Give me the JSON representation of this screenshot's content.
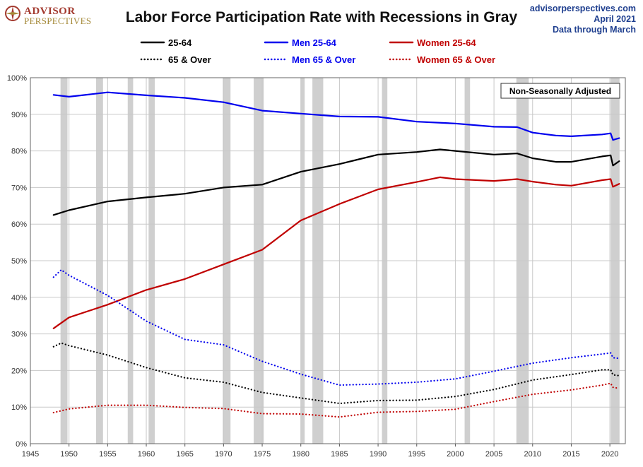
{
  "header": {
    "logo_line1": "ADVISOR",
    "logo_line2": "PERSPECTIVES",
    "title": "Labor Force Participation Rate with Recessions in Gray",
    "source_line1": "advisorperspectives.com",
    "source_line2": "April 2021",
    "source_line3": "Data through March"
  },
  "annotation": "Non-Seasonally Adjusted",
  "chart_data": {
    "type": "line",
    "title": "Labor Force Participation Rate with Recessions in Gray",
    "xlabel": "",
    "ylabel": "",
    "xlim": [
      1945,
      2022
    ],
    "ylim": [
      0,
      100
    ],
    "x_ticks": [
      1945,
      1950,
      1955,
      1960,
      1965,
      1970,
      1975,
      1980,
      1985,
      1990,
      1995,
      2000,
      2005,
      2010,
      2015,
      2020
    ],
    "y_ticks": [
      0,
      10,
      20,
      30,
      40,
      50,
      60,
      70,
      80,
      90,
      100
    ],
    "y_tick_labels": [
      "0%",
      "10%",
      "20%",
      "30%",
      "40%",
      "50%",
      "60%",
      "70%",
      "80%",
      "90%",
      "100%"
    ],
    "grid": true,
    "legend_position": "top",
    "recessions": [
      [
        1948.9,
        1949.8
      ],
      [
        1953.5,
        1954.4
      ],
      [
        1957.6,
        1958.3
      ],
      [
        1960.3,
        1961.1
      ],
      [
        1969.9,
        1970.9
      ],
      [
        1973.9,
        1975.2
      ],
      [
        1980.0,
        1980.5
      ],
      [
        1981.5,
        1982.9
      ],
      [
        1990.5,
        1991.2
      ],
      [
        2001.2,
        2001.9
      ],
      [
        2007.9,
        2009.5
      ],
      [
        2020.1,
        2021.25
      ]
    ],
    "series": [
      {
        "name": "25-64",
        "color": "#000000",
        "style": "solid",
        "x": [
          1948,
          1950,
          1955,
          1960,
          1965,
          1970,
          1975,
          1980,
          1985,
          1990,
          1995,
          1998,
          2000,
          2005,
          2008,
          2010,
          2013,
          2015,
          2019,
          2020.1,
          2020.4,
          2021.2
        ],
        "y": [
          62.5,
          63.8,
          66.2,
          67.3,
          68.3,
          70.0,
          70.8,
          74.3,
          76.4,
          79.0,
          79.7,
          80.4,
          80.0,
          79.0,
          79.3,
          78.0,
          77.0,
          77.0,
          78.5,
          78.8,
          76.0,
          77.2
        ]
      },
      {
        "name": "Men 25-64",
        "color": "#0000ee",
        "style": "solid",
        "x": [
          1948,
          1950,
          1955,
          1960,
          1965,
          1970,
          1975,
          1980,
          1985,
          1990,
          1995,
          2000,
          2005,
          2008,
          2010,
          2013,
          2015,
          2019,
          2020.1,
          2020.4,
          2021.2
        ],
        "y": [
          95.3,
          94.8,
          96.0,
          95.2,
          94.5,
          93.3,
          91.0,
          90.2,
          89.4,
          89.3,
          88.0,
          87.5,
          86.6,
          86.5,
          85.0,
          84.2,
          84.0,
          84.5,
          84.8,
          83.0,
          83.5
        ]
      },
      {
        "name": "Women 25-64",
        "color": "#c00000",
        "style": "solid",
        "x": [
          1948,
          1950,
          1955,
          1960,
          1965,
          1970,
          1975,
          1980,
          1985,
          1990,
          1995,
          1998,
          2000,
          2005,
          2008,
          2010,
          2013,
          2015,
          2019,
          2020.1,
          2020.4,
          2021.2
        ],
        "y": [
          31.5,
          34.5,
          38.0,
          42.0,
          45.0,
          49.0,
          53.0,
          61.0,
          65.5,
          69.5,
          71.5,
          72.8,
          72.3,
          71.8,
          72.3,
          71.6,
          70.8,
          70.5,
          72.0,
          72.3,
          70.2,
          71.0
        ]
      },
      {
        "name": "65 & Over",
        "color": "#000000",
        "style": "dotted",
        "x": [
          1948,
          1949,
          1950,
          1955,
          1960,
          1965,
          1970,
          1975,
          1980,
          1985,
          1990,
          1995,
          2000,
          2005,
          2010,
          2015,
          2019,
          2020.1,
          2020.4,
          2021.2
        ],
        "y": [
          26.5,
          27.5,
          26.8,
          24.2,
          20.8,
          18.0,
          16.8,
          14.0,
          12.5,
          11.0,
          11.8,
          11.9,
          12.9,
          14.8,
          17.4,
          18.9,
          20.2,
          20.2,
          18.8,
          18.6
        ]
      },
      {
        "name": "Men 65 & Over",
        "color": "#0000ee",
        "style": "dotted",
        "x": [
          1948,
          1949,
          1950,
          1955,
          1960,
          1965,
          1970,
          1975,
          1980,
          1985,
          1990,
          1995,
          2000,
          2005,
          2010,
          2015,
          2019,
          2020.1,
          2020.4,
          2021.2
        ],
        "y": [
          45.5,
          47.5,
          46.0,
          40.5,
          33.5,
          28.5,
          27.0,
          22.5,
          19.0,
          16.0,
          16.3,
          16.8,
          17.7,
          19.8,
          22.0,
          23.5,
          24.5,
          24.8,
          23.5,
          23.3
        ]
      },
      {
        "name": "Women 65 & Over",
        "color": "#c00000",
        "style": "dotted",
        "x": [
          1948,
          1950,
          1955,
          1960,
          1965,
          1970,
          1975,
          1980,
          1985,
          1990,
          1995,
          2000,
          2005,
          2010,
          2015,
          2019,
          2020.1,
          2020.4,
          2021.2
        ],
        "y": [
          8.5,
          9.5,
          10.5,
          10.5,
          9.9,
          9.6,
          8.2,
          8.1,
          7.3,
          8.6,
          8.8,
          9.4,
          11.5,
          13.5,
          14.7,
          16.0,
          16.5,
          15.4,
          15.1
        ]
      }
    ]
  }
}
